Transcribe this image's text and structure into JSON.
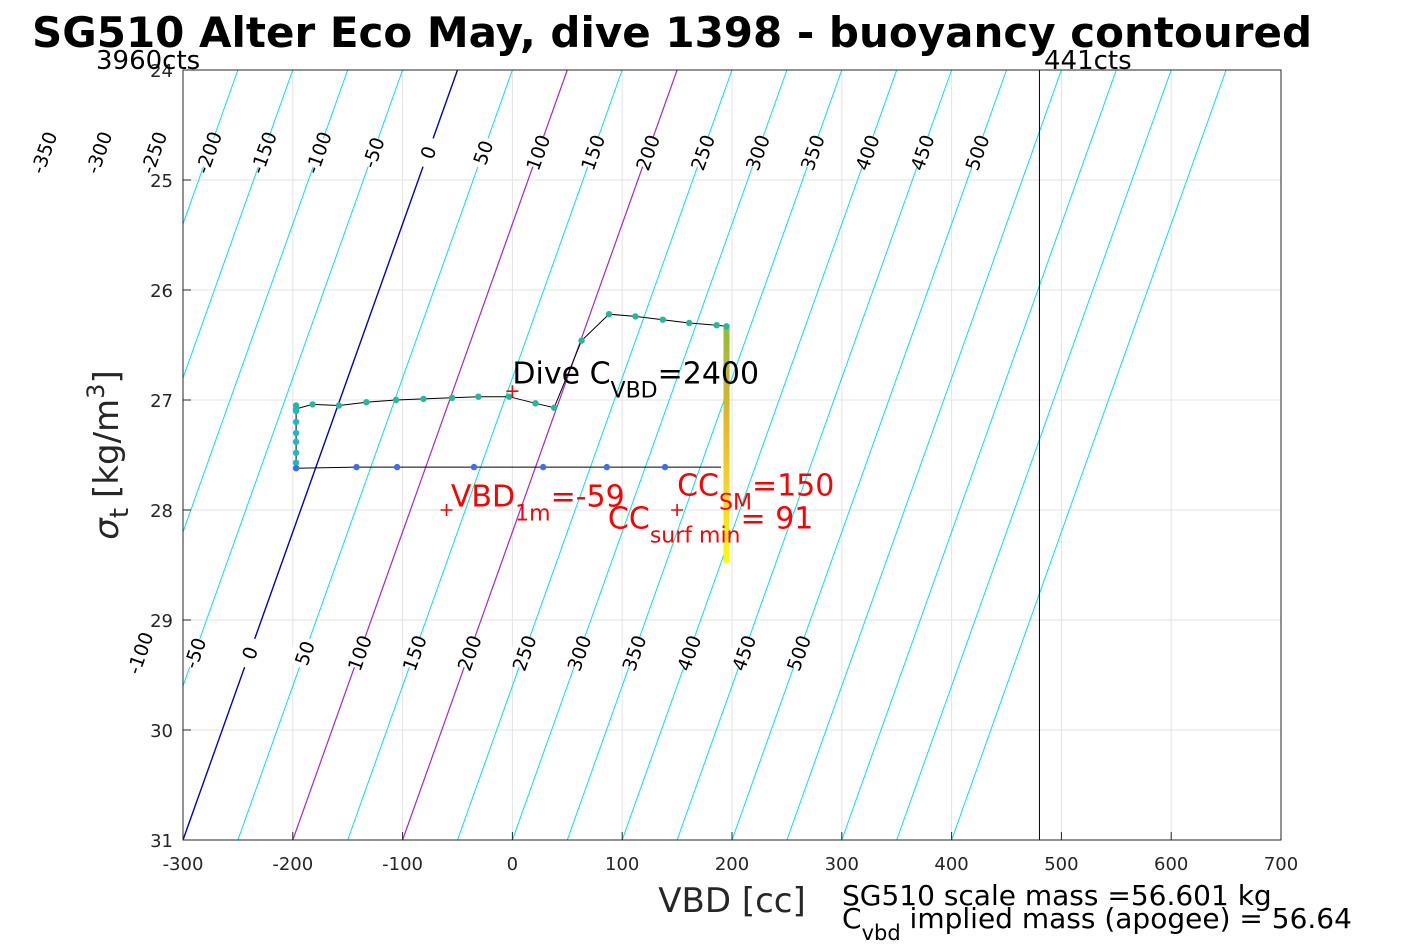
{
  "chart_data": {
    "type": "scatter",
    "title": "SG510 Alter Eco May, dive 1398 - buoyancy contoured",
    "xlabel": "VBD [cc]",
    "ylabel_symbol": "σ",
    "ylabel_sub": "t",
    "ylabel_unit": "[kg/m",
    "ylabel_sup": "3",
    "ylabel_close": "]",
    "xlim": [
      -300,
      700
    ],
    "ylim": [
      24,
      31
    ],
    "y_reversed": true,
    "grid": true,
    "xticks": [
      -300,
      -200,
      -100,
      0,
      100,
      200,
      300,
      400,
      500,
      600,
      700
    ],
    "yticks": [
      24,
      25,
      26,
      27,
      28,
      29,
      30,
      31
    ],
    "contours": {
      "levels": [
        -450,
        -400,
        -350,
        -300,
        -250,
        -200,
        -150,
        -100,
        -50,
        0,
        50,
        100,
        150,
        200,
        250,
        300,
        350,
        400,
        450,
        500,
        550,
        600,
        650,
        700
      ],
      "x_at_top": [
        -500,
        -450,
        -400,
        -350,
        -300,
        -250,
        -200,
        -150,
        -100,
        -50,
        0,
        50,
        100,
        150,
        200,
        250,
        300,
        350,
        400,
        450,
        500,
        550,
        600,
        650
      ],
      "x_at_bottom": [
        -750,
        -700,
        -650,
        -600,
        -550,
        -500,
        -450,
        -400,
        -350,
        -300,
        -250,
        -200,
        -150,
        -100,
        -50,
        0,
        50,
        100,
        150,
        200,
        250,
        300,
        350,
        400
      ],
      "top_labels": [
        "-350",
        "-300",
        "-250",
        "-200",
        "-150",
        "-100",
        "-50",
        "0",
        "50",
        "100",
        "150",
        "200",
        "250",
        "300",
        "350",
        "400",
        "450",
        "500"
      ],
      "top_label_levels": [
        -350,
        -300,
        -250,
        -200,
        -150,
        -100,
        -50,
        0,
        50,
        100,
        150,
        200,
        250,
        300,
        350,
        400,
        450,
        500
      ],
      "bottom_labels": [
        "-100",
        "-50",
        "0",
        "50",
        "100",
        "150",
        "200",
        "250",
        "300",
        "350",
        "400",
        "450",
        "500"
      ],
      "bottom_label_levels": [
        -100,
        -50,
        0,
        50,
        100,
        150,
        200,
        250,
        300,
        350,
        400,
        450,
        500
      ],
      "zero_color": "#0000cc",
      "highlight_color": "#aa22dd",
      "highlight_levels": [
        100,
        200
      ],
      "other_color": "#00e5e5"
    },
    "series": [
      {
        "role": "dive",
        "color": "#26b89a",
        "x": [
          -197,
          -197,
          -182,
          -158,
          -133,
          -106,
          -81,
          -55,
          -31,
          -3,
          21,
          38,
          63,
          88,
          112,
          137,
          161,
          186,
          195
        ],
        "y": [
          27.05,
          27.08,
          27.04,
          27.05,
          27.02,
          27.0,
          26.99,
          26.98,
          26.97,
          26.97,
          27.03,
          27.07,
          26.46,
          26.22,
          26.24,
          26.27,
          26.3,
          26.32,
          26.33
        ]
      },
      {
        "role": "bottom",
        "color": "#1bbbc4",
        "x": [
          -197,
          -197,
          -197,
          -197,
          -197,
          -197
        ],
        "y": [
          27.1,
          27.2,
          27.3,
          27.38,
          27.48,
          27.57
        ]
      },
      {
        "role": "climb",
        "color": "#3d6df0",
        "x": [
          -197,
          -142,
          -105,
          -35,
          28,
          86,
          139
        ],
        "y": [
          27.62,
          27.61,
          27.61,
          27.61,
          27.61,
          27.61,
          27.61
        ]
      }
    ],
    "path": {
      "x": [
        -197,
        -197,
        -182,
        -158,
        -133,
        -106,
        -81,
        -55,
        -31,
        -3,
        21,
        38,
        63,
        88,
        112,
        137,
        161,
        186,
        195,
        195,
        195,
        195,
        195
      ],
      "y": [
        27.05,
        27.08,
        27.04,
        27.05,
        27.02,
        27.0,
        26.99,
        26.98,
        26.97,
        26.97,
        27.03,
        27.07,
        26.46,
        26.22,
        26.24,
        26.27,
        26.3,
        26.32,
        26.33,
        26.33,
        27.0,
        27.3,
        27.62
      ]
    },
    "climb_path": {
      "x": [
        -197,
        -197,
        -142,
        -105,
        -35,
        28,
        86,
        139,
        190
      ],
      "y": [
        27.1,
        27.62,
        27.61,
        27.61,
        27.61,
        27.61,
        27.61,
        27.61,
        27.61
      ]
    },
    "gradient_bar": {
      "x": 195,
      "y_top": 26.33,
      "y_bottom": 28.48,
      "colors": [
        "#8ebf3a",
        "#c8b42c",
        "#f0be2c",
        "#f5dc20",
        "#fafa12"
      ]
    },
    "vlines": [
      {
        "x": -300,
        "label": "3960cts"
      },
      {
        "x": 480,
        "label": "441cts"
      }
    ],
    "markers": [
      {
        "x": -60,
        "y": 28.0,
        "color": "#ff0000"
      },
      {
        "x": 150,
        "y": 28.0,
        "color": "#ff0000"
      },
      {
        "x": 0,
        "y": 26.92,
        "color": "#ff0000"
      }
    ],
    "annotations": {
      "dive_cvbd": {
        "prefix": "Dive C",
        "sub": "VBD",
        "suffix": "=2400",
        "x": 0,
        "y": 26.85
      },
      "vbd_1m": {
        "prefix": "VBD",
        "sub": "1m",
        "suffix": "=-59",
        "x": -56,
        "y": 27.97
      },
      "cc_sm": {
        "prefix": "CC",
        "sub": "SM",
        "suffix": "=150",
        "x": 150,
        "y": 27.87
      },
      "cc_surf": {
        "prefix": "CC",
        "sub": "surf min",
        "suffix": "= 91",
        "x": 87,
        "y": 28.17
      }
    },
    "footer": {
      "scale_mass": "SG510 scale mass =56.601 kg",
      "implied_prefix": "C",
      "implied_sub": "vbd",
      "implied_suffix": " implied mass (apogee) = 56.64"
    }
  }
}
